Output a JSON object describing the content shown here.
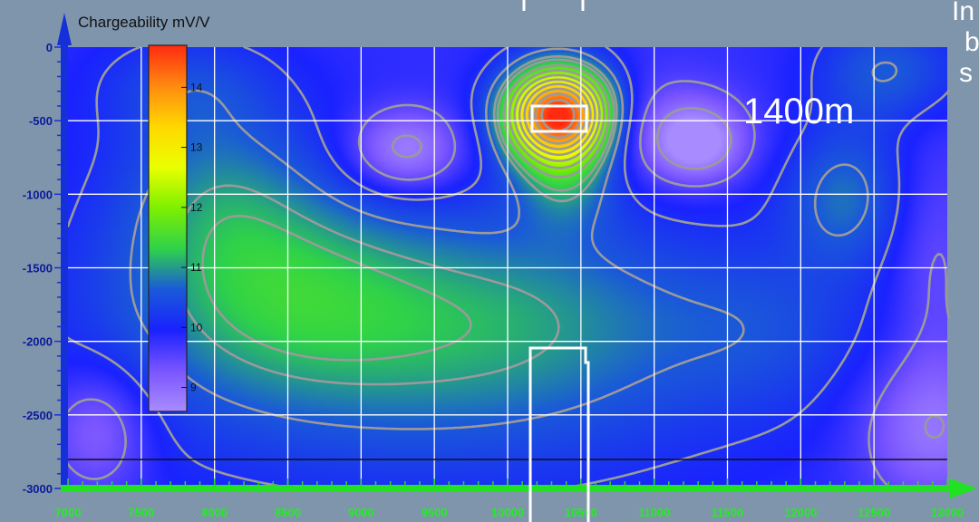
{
  "chart_data": {
    "type": "heatmap",
    "title": "Chargeability mV/V",
    "xlabel": "",
    "ylabel": "",
    "xlim": [
      7000,
      13000
    ],
    "ylim": [
      -3000,
      0
    ],
    "x_ticks": [
      "7000",
      "7500",
      "8000",
      "8500",
      "9000",
      "9500",
      "10000",
      "10500",
      "11000",
      "11500",
      "12000",
      "12500",
      "13000"
    ],
    "y_ticks": [
      "0",
      "-500",
      "-1000",
      "-1500",
      "-2000",
      "-2500",
      "-3000"
    ],
    "colorbar": {
      "ticks": [
        "14",
        "13",
        "12",
        "11",
        "10",
        "9"
      ],
      "range": [
        8.6,
        14.7
      ],
      "colors": [
        "#ff2a10",
        "#ff8a10",
        "#ffd800",
        "#eaff00",
        "#7df000",
        "#2ed24a",
        "#1a5ad8",
        "#1a22ff",
        "#7a55ff",
        "#a88cff"
      ]
    },
    "grid": true,
    "field": {
      "background": 9.8,
      "anomalies": [
        {
          "x": 10350,
          "y": -450,
          "amp": 5.0,
          "sx": 260,
          "sy": 230
        },
        {
          "x": 8400,
          "y": -1600,
          "amp": 1.05,
          "sx": 800,
          "sy": 520
        },
        {
          "x": 9500,
          "y": -2200,
          "amp": 0.8,
          "sx": 1500,
          "sy": 600
        },
        {
          "x": 10200,
          "y": -1700,
          "amp": 0.6,
          "sx": 900,
          "sy": 500
        },
        {
          "x": 8000,
          "y": -900,
          "amp": 0.7,
          "sx": 500,
          "sy": 450
        },
        {
          "x": 12300,
          "y": -1000,
          "amp": 0.9,
          "sx": 300,
          "sy": 350
        },
        {
          "x": 10400,
          "y": -900,
          "amp": 0.8,
          "sx": 250,
          "sy": 250
        },
        {
          "x": 12600,
          "y": -150,
          "amp": 0.8,
          "sx": 350,
          "sy": 250
        },
        {
          "x": 7800,
          "y": -250,
          "amp": 0.5,
          "sx": 450,
          "sy": 250
        },
        {
          "x": 11800,
          "y": -1900,
          "amp": 0.4,
          "sx": 500,
          "sy": 400
        },
        {
          "x": 9300,
          "y": -700,
          "amp": -1.2,
          "sx": 270,
          "sy": 200
        },
        {
          "x": 11300,
          "y": -650,
          "amp": -1.2,
          "sx": 220,
          "sy": 180
        },
        {
          "x": 11000,
          "y": -550,
          "amp": -0.6,
          "sx": 400,
          "sy": 260
        },
        {
          "x": 7200,
          "y": -2600,
          "amp": -0.8,
          "sx": 250,
          "sy": 300
        },
        {
          "x": 12900,
          "y": -2600,
          "amp": -0.9,
          "sx": 350,
          "sy": 350
        },
        {
          "x": 12900,
          "y": -1500,
          "amp": -0.4,
          "sx": 200,
          "sy": 600
        }
      ],
      "contour_levels": [
        8.9,
        9.5,
        10.1,
        10.6,
        11.0,
        11.2,
        11.6,
        12.0,
        12.4,
        12.8,
        13.2,
        13.6,
        14.0,
        14.4
      ]
    },
    "bottom_line_depth": -2800,
    "target_box": {
      "x1": 10170,
      "x2": 10530,
      "y1": -400,
      "y2": -560
    },
    "target_outline": {
      "x1": 10170,
      "x2": 10530,
      "top": -2050
    }
  },
  "annotations": {
    "distance_label": "1400m",
    "edge_text": [
      "In",
      "b",
      "s"
    ]
  }
}
